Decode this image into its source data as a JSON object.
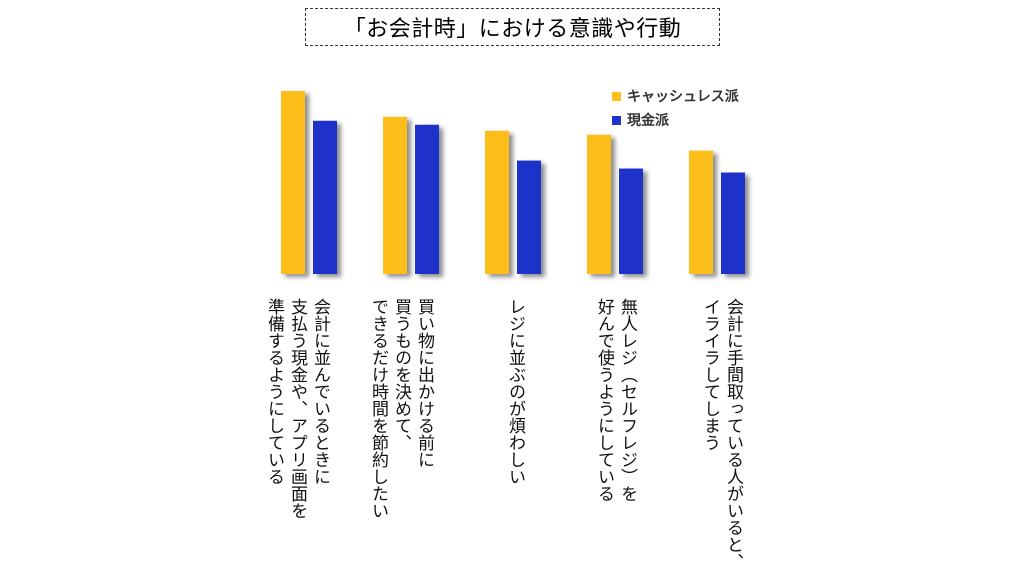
{
  "title": "「お会計時」における意識や行動",
  "colors": {
    "cashless": "#FDBE1A",
    "cash": "#1F33C9"
  },
  "chart_data": {
    "type": "bar",
    "title": "「お会計時」における意識や行動",
    "categories": [
      "会計に並んでいるときに\n支払う現金や、アプリ画面を\n準備するようにしている",
      "買い物に出かける前に\n買うものを決めて、\nできるだけ時間を節約したい",
      "レジに並ぶのが煩わしい",
      "無人レジ（セルフレジ）を\n好んで使うようにしている",
      "会計に手間取っている人がいると、\nイライラしてしまう"
    ],
    "series": [
      {
        "name": "キャッシュレス派",
        "values": [
          92,
          79,
          72,
          70,
          62
        ]
      },
      {
        "name": "現金派",
        "values": [
          77,
          75,
          57,
          53,
          51
        ]
      }
    ],
    "ylim": [
      0,
      100
    ],
    "grid": false,
    "legend": "top-right"
  }
}
